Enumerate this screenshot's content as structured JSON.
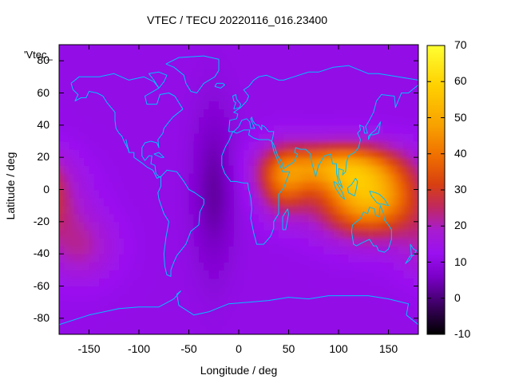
{
  "chart_data": {
    "type": "heatmap",
    "title": "VTEC / TECU 20220116_016.23400",
    "xlabel": "Longitude / deg",
    "ylabel": "Latitude / deg",
    "map_label": "'Vtec_",
    "xlim": [
      -180,
      180
    ],
    "ylim": [
      -90,
      90
    ],
    "x_ticks": [
      -150,
      -100,
      -50,
      0,
      50,
      100,
      150
    ],
    "y_ticks": [
      60,
      40,
      20,
      0,
      -20,
      -40,
      -60,
      -80
    ],
    "y_ticks_overlapped": [
      80
    ],
    "colorbar": {
      "range": [
        -10,
        70
      ],
      "ticks": [
        70,
        60,
        50,
        40,
        30,
        20,
        10,
        0,
        -10
      ],
      "palette": [
        "#000000",
        "#3b0060",
        "#7b00c8",
        "#9a10f0",
        "#a81cd0",
        "#c02860",
        "#d84010",
        "#f07000",
        "#f8a000",
        "#ffd000",
        "#ffff33"
      ]
    },
    "field": {
      "background_tecu": 11,
      "features": [
        {
          "name": "southeast asia / australia maximum",
          "lon": 130,
          "lat": -5,
          "peak_tecu": 52,
          "lon_spread": 35,
          "lat_spread": 16
        },
        {
          "name": "indian ocean enhancement",
          "lon": 95,
          "lat": 15,
          "peak_tecu": 40,
          "lon_spread": 40,
          "lat_spread": 10
        },
        {
          "name": "east africa / arabia enhancement",
          "lon": 45,
          "lat": 5,
          "peak_tecu": 34,
          "lon_spread": 18,
          "lat_spread": 14
        },
        {
          "name": "south pacific secondary",
          "lon": -160,
          "lat": -35,
          "peak_tecu": 21,
          "lon_spread": 25,
          "lat_spread": 15
        },
        {
          "name": "atlantic minimum",
          "lon": -25,
          "lat": 0,
          "peak_tecu": 3,
          "lon_spread": 15,
          "lat_spread": 35
        }
      ]
    },
    "coastline_color": "#00c0ff",
    "grid": false
  }
}
